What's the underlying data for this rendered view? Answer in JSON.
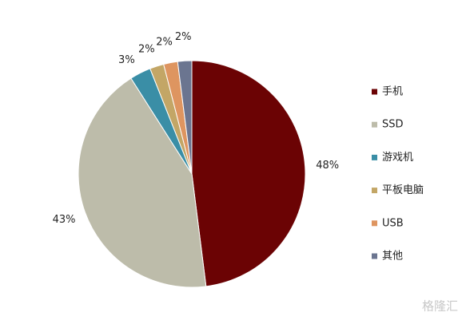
{
  "chart_data": {
    "type": "pie",
    "categories": [
      "手机",
      "SSD",
      "游戏机",
      "平板电脑",
      "USB",
      "其他"
    ],
    "values": [
      48,
      43,
      3,
      2,
      2,
      2
    ],
    "value_labels": [
      "48%",
      "43%",
      "3%",
      "2%",
      "2%",
      "2%"
    ],
    "colors": [
      "#6b0304",
      "#bdbcaa",
      "#3a8ea6",
      "#c3a666",
      "#de9560",
      "#6b7590"
    ],
    "legend": "right",
    "watermark": "格隆汇"
  }
}
